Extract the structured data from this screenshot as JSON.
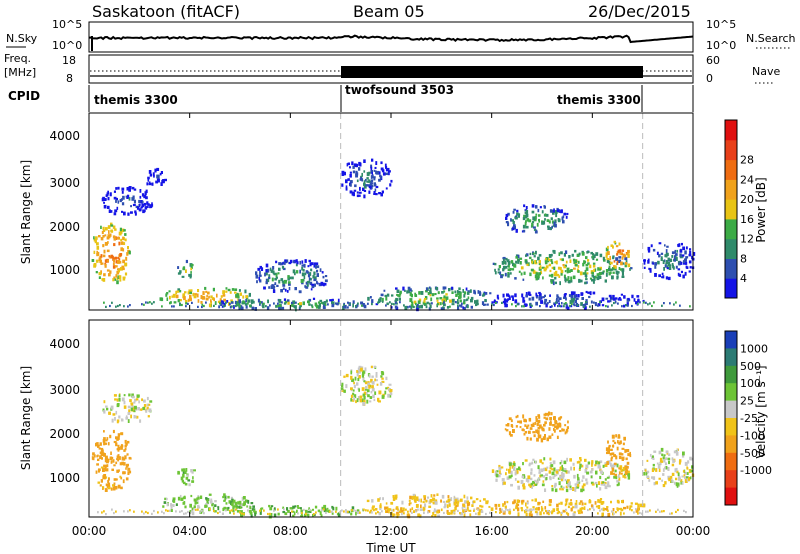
{
  "header": {
    "site": "Saskatoon (fitACF)",
    "beam": "Beam 05",
    "date": "26/Dec/2015"
  },
  "noise_panel": {
    "left_label": "N.Sky",
    "right_label": "N.Search",
    "left_ticks": [
      "10^5",
      "10^0"
    ],
    "right_ticks": [
      "10^5",
      "10^0"
    ]
  },
  "freq_panel": {
    "left_label_1": "Freq.",
    "left_label_2": "[MHz]",
    "right_label": "Nave",
    "left_ticks": [
      "18",
      "8"
    ],
    "right_ticks": [
      "60",
      "0"
    ]
  },
  "cpid_panel": {
    "label": "CPID",
    "segments": [
      {
        "name": "themis 3300",
        "start_h": 0,
        "end_h": 10
      },
      {
        "name": "twofsound 3503",
        "start_h": 10,
        "end_h": 22
      },
      {
        "name": "themis 3300",
        "start_h": 22,
        "end_h": 24
      }
    ]
  },
  "axes": {
    "ylabel": "Slant Range [km]",
    "xlabel": "Time UT",
    "y_ticks": [
      "1000",
      "2000",
      "3000",
      "4000"
    ],
    "x_ticks": [
      "00:00",
      "04:00",
      "08:00",
      "12:00",
      "16:00",
      "20:00",
      "00:00"
    ]
  },
  "colorbars": {
    "power": {
      "label": "Power [dB]",
      "ticks": [
        "4",
        "8",
        "12",
        "16",
        "20",
        "24",
        "28"
      ],
      "colors": [
        "#1414e6",
        "#2e4fb0",
        "#2f8a6a",
        "#3cab46",
        "#e8c415",
        "#f0a21c",
        "#ef6d12",
        "#e8401a",
        "#e01010"
      ]
    },
    "velocity": {
      "label": "Velocity [m s⁻¹]",
      "ticks": [
        "1000",
        "500",
        "100",
        "25",
        "-25",
        "-100",
        "-500",
        "-1000"
      ],
      "colors": [
        "#1a3fb8",
        "#2c7b74",
        "#3f9a3c",
        "#6dc436",
        "#c8c8c8",
        "#f0c319",
        "#f0a21c",
        "#ef6d12",
        "#e8401a",
        "#e01010"
      ]
    }
  },
  "chart_data": [
    {
      "type": "heatmap",
      "title": "Power",
      "x": "Time UT (hours)",
      "y": "Slant Range (km)",
      "xlim": [
        0,
        24
      ],
      "ylim": [
        180,
        4500
      ],
      "color_scale_label": "Power [dB]",
      "regions": [
        {
          "t0": 0.1,
          "t1": 1.6,
          "r0": 800,
          "r1": 2100,
          "level": 26
        },
        {
          "t0": 0.5,
          "t1": 2.5,
          "r0": 2300,
          "r1": 2900,
          "level": 6
        },
        {
          "t0": 2.2,
          "t1": 3.0,
          "r0": 2900,
          "r1": 3300,
          "level": 5
        },
        {
          "t0": 3.5,
          "t1": 4.2,
          "r0": 900,
          "r1": 1300,
          "level": 18
        },
        {
          "t0": 2.8,
          "t1": 6.5,
          "r0": 300,
          "r1": 700,
          "level": 22
        },
        {
          "t0": 5.0,
          "t1": 11.0,
          "r0": 220,
          "r1": 450,
          "level": 14
        },
        {
          "t0": 6.5,
          "t1": 9.5,
          "r0": 600,
          "r1": 1300,
          "level": 12
        },
        {
          "t0": 10.0,
          "t1": 12.0,
          "r0": 2700,
          "r1": 3500,
          "level": 8
        },
        {
          "t0": 11.0,
          "t1": 16.0,
          "r0": 220,
          "r1": 700,
          "level": 16
        },
        {
          "t0": 16.0,
          "t1": 21.5,
          "r0": 800,
          "r1": 1500,
          "level": 18
        },
        {
          "t0": 16.5,
          "t1": 19.0,
          "r0": 1900,
          "r1": 2500,
          "level": 14
        },
        {
          "t0": 20.5,
          "t1": 21.5,
          "r0": 1100,
          "r1": 1700,
          "level": 26
        },
        {
          "t0": 22.0,
          "t1": 24.0,
          "r0": 900,
          "r1": 1700,
          "level": 9
        },
        {
          "t0": 16.0,
          "t1": 22.0,
          "r0": 250,
          "r1": 600,
          "level": 8
        }
      ]
    },
    {
      "type": "heatmap",
      "title": "Velocity",
      "x": "Time UT (hours)",
      "y": "Slant Range (km)",
      "xlim": [
        0,
        24
      ],
      "ylim": [
        180,
        4500
      ],
      "color_scale_label": "Velocity [m s-1]",
      "regions": [
        {
          "t0": 0.1,
          "t1": 1.6,
          "r0": 800,
          "r1": 2100,
          "level": -150
        },
        {
          "t0": 0.5,
          "t1": 2.5,
          "r0": 2300,
          "r1": 2900,
          "level": 0
        },
        {
          "t0": 3.5,
          "t1": 4.2,
          "r0": 900,
          "r1": 1300,
          "level": 50
        },
        {
          "t0": 2.8,
          "t1": 6.5,
          "r0": 300,
          "r1": 700,
          "level": 60
        },
        {
          "t0": 5.0,
          "t1": 11.0,
          "r0": 220,
          "r1": 450,
          "level": 80
        },
        {
          "t0": 10.0,
          "t1": 12.0,
          "r0": 2700,
          "r1": 3500,
          "level": 0
        },
        {
          "t0": 11.0,
          "t1": 16.0,
          "r0": 220,
          "r1": 700,
          "level": -60
        },
        {
          "t0": 16.0,
          "t1": 21.5,
          "r0": 800,
          "r1": 1500,
          "level": 0
        },
        {
          "t0": 16.5,
          "t1": 19.0,
          "r0": 1900,
          "r1": 2500,
          "level": -200
        },
        {
          "t0": 20.5,
          "t1": 21.5,
          "r0": 1100,
          "r1": 2000,
          "level": -300
        },
        {
          "t0": 22.0,
          "t1": 24.0,
          "r0": 900,
          "r1": 1700,
          "level": 0
        },
        {
          "t0": 16.0,
          "t1": 22.0,
          "r0": 250,
          "r1": 600,
          "level": -80
        }
      ]
    }
  ]
}
